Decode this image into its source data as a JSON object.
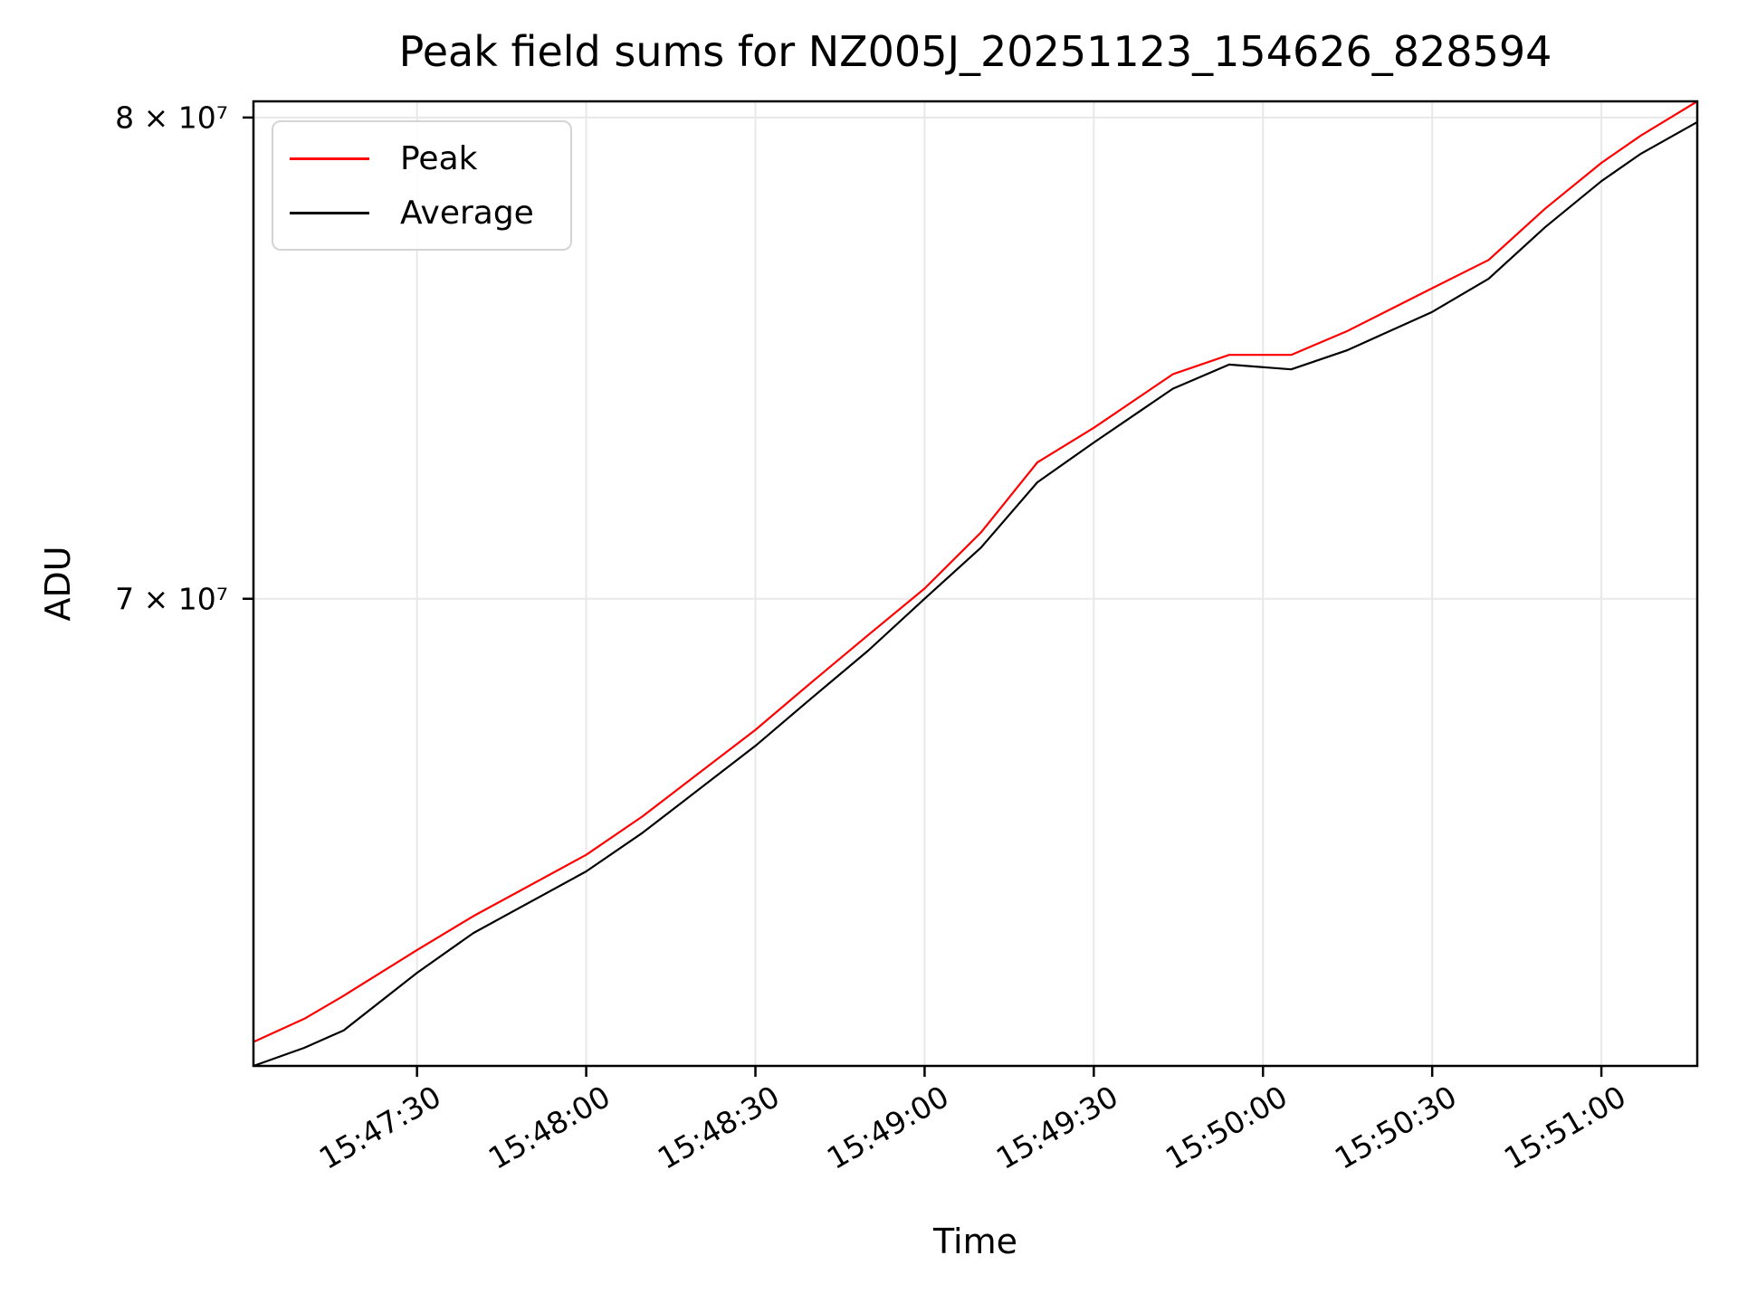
{
  "chart_data": {
    "type": "line",
    "title": "Peak field sums for NZ005J_20251123_154626_828594",
    "xlabel": "Time",
    "ylabel": "ADU",
    "yscale": "log",
    "grid": true,
    "legend_position": "upper left",
    "x": [
      "15:47:01",
      "15:47:10",
      "15:47:17",
      "15:47:30",
      "15:47:40",
      "15:48:00",
      "15:48:10",
      "15:48:30",
      "15:48:40",
      "15:48:50",
      "15:49:00",
      "15:49:10",
      "15:49:20",
      "15:49:30",
      "15:49:44",
      "15:49:54",
      "15:50:05",
      "15:50:15",
      "15:50:30",
      "15:50:40",
      "15:50:50",
      "15:51:00",
      "15:51:07",
      "15:51:17"
    ],
    "series": [
      {
        "name": "Peak",
        "color": "#ff0000",
        "values": [
          61900000,
          62300000,
          62700000,
          63500000,
          64100000,
          65200000,
          65900000,
          67500000,
          68400000,
          69300000,
          70200000,
          71300000,
          72700000,
          73400000,
          74500000,
          74900000,
          74900000,
          75400000,
          76300000,
          76900000,
          78000000,
          79000000,
          79600000,
          80360000
        ]
      },
      {
        "name": "Average",
        "color": "#000000",
        "values": [
          61490000,
          61800000,
          62100000,
          63100000,
          63800000,
          64900000,
          65600000,
          67200000,
          68100000,
          69000000,
          70000000,
          71000000,
          72300000,
          73100000,
          74200000,
          74700000,
          74600000,
          75000000,
          75800000,
          76500000,
          77600000,
          78600000,
          79200000,
          79900000
        ]
      }
    ],
    "x_ticks": [
      "15:47:30",
      "15:48:00",
      "15:48:30",
      "15:49:00",
      "15:49:30",
      "15:50:00",
      "15:50:30",
      "15:51:00"
    ],
    "y_ticks": [
      {
        "label": "8 × 10⁷",
        "value": 80000000
      },
      {
        "label": "7 × 10⁷",
        "value": 70000000
      }
    ],
    "xlim": [
      "15:47:01",
      "15:51:17"
    ],
    "ylim": [
      61490000,
      80360000
    ],
    "colors": {
      "grid": "#e8e8e8",
      "frame": "#000000",
      "background": "#ffffff"
    }
  }
}
